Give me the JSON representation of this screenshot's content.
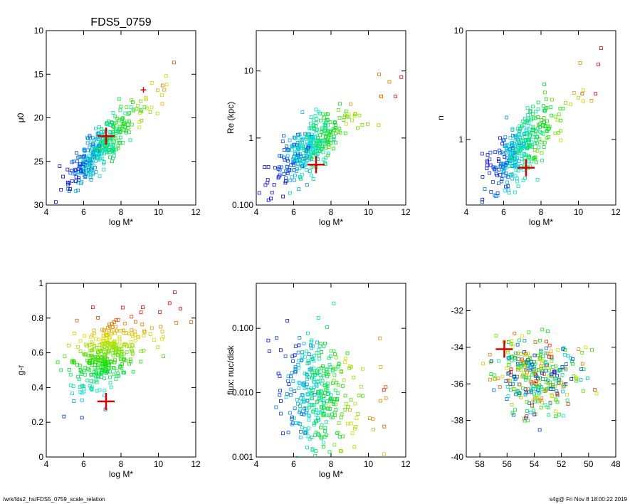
{
  "title": "FDS5_0759",
  "footer": {
    "left": "/wrk/fds2_hs/FDS5_0759_scale_relation",
    "right": "s4g@  Fri Nov  8 18:00:22 2019"
  },
  "chart_data": [
    {
      "type": "scatter",
      "id": "mu0",
      "xlabel": "log M*",
      "ylabel": "μ0",
      "xlim": [
        4,
        12
      ],
      "ylim": [
        30,
        10
      ],
      "yscale": "linear",
      "xticks": [
        4,
        6,
        8,
        10,
        12
      ],
      "yticks": [
        10,
        15,
        20,
        25,
        30
      ],
      "target": {
        "x": 7.2,
        "y": 22.1
      },
      "cloud": {
        "x_center": 6.8,
        "y_center": 23.5,
        "slope": -2.0,
        "scatter": 1.2
      },
      "highlights": [
        {
          "x": 9.2,
          "y": 16.8
        }
      ]
    },
    {
      "type": "scatter",
      "id": "re",
      "xlabel": "log M*",
      "ylabel": "Re (kpc)",
      "xlim": [
        4,
        12
      ],
      "ylim": [
        0.1,
        40
      ],
      "yscale": "log",
      "xticks": [
        4,
        6,
        8,
        10,
        12
      ],
      "yticks": [
        0.1,
        1.0,
        10.0
      ],
      "target": {
        "x": 7.2,
        "y": 0.4
      },
      "cloud": {
        "x_center": 6.8,
        "log_y_center": -0.15,
        "slope": 0.2,
        "scatter": 0.18
      }
    },
    {
      "type": "scatter",
      "id": "n",
      "xlabel": "log M*",
      "ylabel": "n",
      "xlim": [
        4,
        12
      ],
      "ylim": [
        0.25,
        10
      ],
      "yscale": "log",
      "xticks": [
        4,
        6,
        8,
        10,
        12
      ],
      "yticks": [
        1,
        10
      ],
      "target": {
        "x": 7.2,
        "y": 0.55
      },
      "cloud": {
        "x_center": 6.8,
        "log_y_center": -0.1,
        "slope": 0.15,
        "scatter": 0.14
      }
    },
    {
      "type": "scatter",
      "id": "gr",
      "xlabel": "log M*",
      "ylabel": "g-r",
      "xlim": [
        4,
        12
      ],
      "ylim": [
        0,
        1
      ],
      "yscale": "linear",
      "xticks": [
        4,
        6,
        8,
        10,
        12
      ],
      "yticks": [
        0.0,
        0.2,
        0.4,
        0.6,
        0.8,
        1.0
      ],
      "target": {
        "x": 7.2,
        "y": 0.32
      },
      "cloud": {
        "x_center": 7.0,
        "y_center": 0.57,
        "slope": 0.06,
        "scatter": 0.09
      }
    },
    {
      "type": "scatter",
      "id": "flux",
      "xlabel": "log M*",
      "ylabel": "flux: nuc/disk",
      "xlim": [
        4,
        12
      ],
      "ylim": [
        0.001,
        0.5
      ],
      "yscale": "log",
      "xticks": [
        4,
        6,
        8,
        10,
        12
      ],
      "yticks": [
        0.001,
        0.01,
        0.1
      ],
      "cloud": {
        "x_center": 7.2,
        "log_y_center": -2.0,
        "slope": -0.05,
        "scatter": 0.45
      }
    },
    {
      "type": "scatter",
      "id": "coords",
      "xlabel": "",
      "ylabel": "",
      "xlim": [
        59,
        48
      ],
      "ylim": [
        -40,
        -30.5
      ],
      "yscale": "linear",
      "xticks": [
        58,
        56,
        54,
        52,
        50,
        48
      ],
      "yticks": [
        -40,
        -38,
        -36,
        -34,
        -32
      ],
      "target": {
        "x": 56.2,
        "y": -34.1
      },
      "cloud": {
        "x_center": 53.8,
        "y_center": -35.6,
        "x_range": 3.5,
        "y_range": 1.6
      }
    }
  ]
}
